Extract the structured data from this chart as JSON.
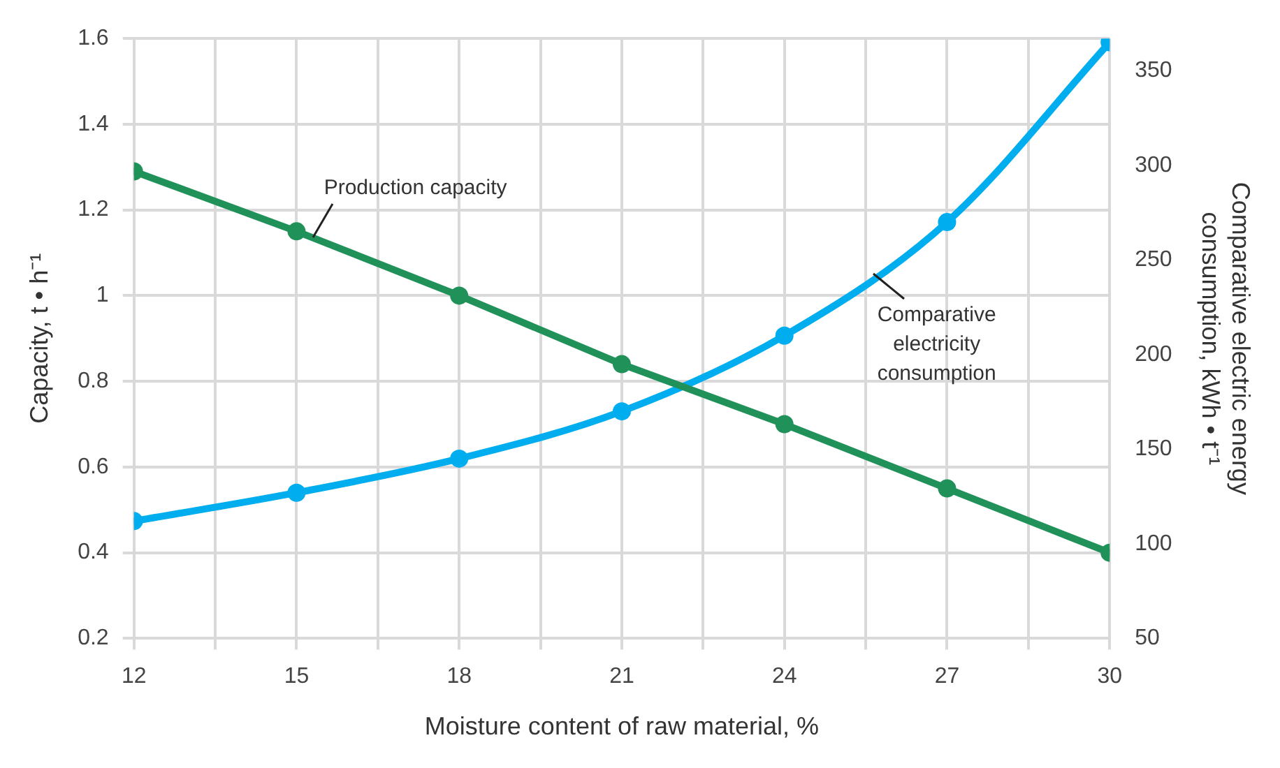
{
  "chart_data": {
    "type": "line",
    "xlabel": "Moisture content of raw material, %",
    "ylabel": "Capacity, t • h⁻¹",
    "y2label": "Comparative electric energy consumption, kWh • t⁻¹",
    "x": [
      12,
      15,
      18,
      21,
      24,
      27,
      30
    ],
    "series": [
      {
        "name": "Production capacity",
        "color": "#21915a",
        "values": [
          1.29,
          1.15,
          1.0,
          0.84,
          0.7,
          0.55,
          0.4
        ]
      },
      {
        "name": "Comparative electricity consumption",
        "color": "#00aeef",
        "axis": "y2",
        "values": [
          112,
          127,
          145,
          170,
          210,
          270,
          365
        ]
      }
    ],
    "xlim": [
      12,
      30
    ],
    "xticks": [
      12,
      {
        "value": 13.5,
        "label": null
      },
      15,
      {
        "value": 16.5,
        "label": null
      },
      18,
      {
        "value": 19.5,
        "label": null
      },
      21,
      {
        "value": 22.5,
        "label": null
      },
      24,
      {
        "value": 25.5,
        "label": null
      },
      27,
      {
        "value": 28.5,
        "label": null
      },
      30
    ],
    "ylim": [
      0.2,
      1.6
    ],
    "yticks": [
      0.2,
      0.4,
      0.6,
      0.8,
      1,
      1.2,
      1.4,
      1.6
    ],
    "y2lim": [
      50,
      367
    ],
    "y2ticks": [
      50,
      100,
      150,
      200,
      250,
      300,
      350
    ],
    "grid": true,
    "marker": "circle",
    "line_style": "solid",
    "legend": false
  }
}
